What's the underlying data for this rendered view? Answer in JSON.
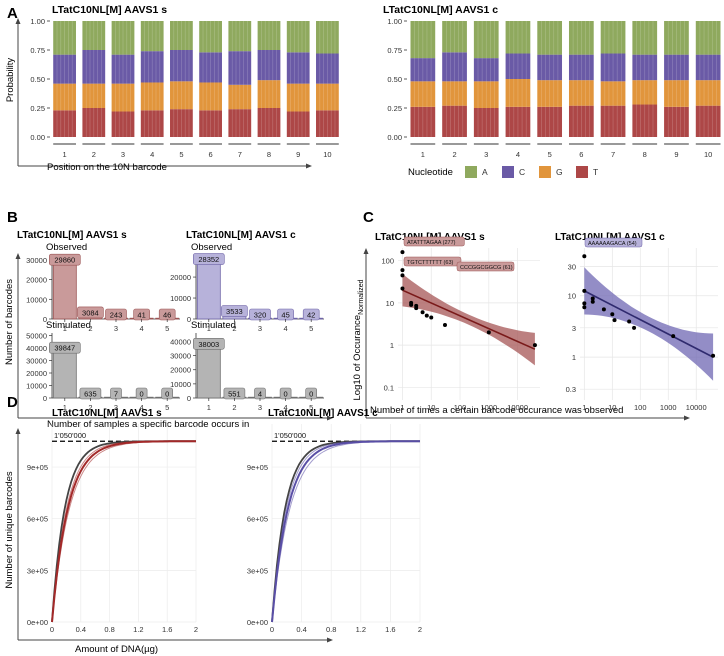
{
  "colors": {
    "A": "#8fa95e",
    "C": "#6a5aa6",
    "G": "#e1953c",
    "T": "#ad4747",
    "obs_s": "#c99a9a",
    "obs_s_stroke": "#9c5555",
    "obs_c": "#b7b2da",
    "obs_c_stroke": "#6f64a8",
    "stim": "#b4b4b4",
    "stim_stroke": "#6f6f6f",
    "line_s": "#7a1a1a",
    "band_s": "#a65555",
    "line_c": "#2f2a6e",
    "band_c": "#6f67b3",
    "grey_curve": "#444444"
  },
  "panels": {
    "A": {
      "letter": "A"
    },
    "B": {
      "letter": "B",
      "ylabel": "Number of barcodes",
      "xlabel": "Number of samples a specific barcode occurs in"
    },
    "C": {
      "letter": "C",
      "ylabel_main": "Log10 of Occurance",
      "ylabel_sub": "Normalized",
      "xlabel": "Number of times a certain barcode occurance was observed"
    },
    "D": {
      "letter": "D",
      "ylabel": "Number of unique barcodes",
      "xlabel": "Amount of DNA(µg)"
    }
  },
  "chart_data": [
    {
      "id": "A_s",
      "type": "bar",
      "stacked": true,
      "title": "LTatC10NL[M] AAVS1 s",
      "xlabel": "Position on the 10N barcode",
      "ylabel": "Probability",
      "ylim": [
        0,
        1
      ],
      "yticks": [
        "0.00",
        "0.25",
        "0.50",
        "0.75",
        "1.00"
      ],
      "categories": [
        "1",
        "2",
        "3",
        "4",
        "5",
        "6",
        "7",
        "8",
        "9",
        "10"
      ],
      "series": [
        {
          "name": "T",
          "values": [
            0.23,
            0.25,
            0.22,
            0.23,
            0.24,
            0.23,
            0.24,
            0.25,
            0.22,
            0.23
          ]
        },
        {
          "name": "G",
          "values": [
            0.23,
            0.21,
            0.24,
            0.24,
            0.24,
            0.24,
            0.21,
            0.24,
            0.24,
            0.23
          ]
        },
        {
          "name": "C",
          "values": [
            0.25,
            0.29,
            0.25,
            0.27,
            0.27,
            0.26,
            0.29,
            0.26,
            0.27,
            0.26
          ]
        },
        {
          "name": "A",
          "values": [
            0.29,
            0.25,
            0.29,
            0.26,
            0.25,
            0.27,
            0.26,
            0.25,
            0.27,
            0.28
          ]
        }
      ]
    },
    {
      "id": "A_c",
      "type": "bar",
      "stacked": true,
      "title": "LTatC10NL[M] AAVS1 c",
      "ylim": [
        0,
        1
      ],
      "yticks": [
        "0.00",
        "0.25",
        "0.50",
        "0.75",
        "1.00"
      ],
      "categories": [
        "1",
        "2",
        "3",
        "4",
        "5",
        "6",
        "7",
        "8",
        "9",
        "10"
      ],
      "series": [
        {
          "name": "T",
          "values": [
            0.26,
            0.27,
            0.25,
            0.26,
            0.26,
            0.27,
            0.27,
            0.28,
            0.26,
            0.27
          ]
        },
        {
          "name": "G",
          "values": [
            0.22,
            0.21,
            0.23,
            0.24,
            0.23,
            0.22,
            0.21,
            0.21,
            0.23,
            0.22
          ]
        },
        {
          "name": "C",
          "values": [
            0.2,
            0.25,
            0.2,
            0.22,
            0.22,
            0.22,
            0.24,
            0.22,
            0.22,
            0.22
          ]
        },
        {
          "name": "A",
          "values": [
            0.32,
            0.27,
            0.32,
            0.28,
            0.29,
            0.29,
            0.28,
            0.29,
            0.29,
            0.29
          ]
        }
      ],
      "legend": {
        "title": "Nucleotide",
        "entries": [
          "A",
          "C",
          "G",
          "T"
        ],
        "position": "bottom"
      }
    },
    {
      "id": "B_obs_s",
      "type": "bar",
      "title": "LTatC10NL[M] AAVS1 s",
      "subtitle": "Observed",
      "categories": [
        "1",
        "2",
        "3",
        "4",
        "5"
      ],
      "values": [
        29860,
        3084,
        243,
        41,
        46
      ],
      "ylim": [
        0,
        33000
      ],
      "yticks": [
        0,
        10000,
        20000,
        30000
      ]
    },
    {
      "id": "B_stim_s",
      "type": "bar",
      "subtitle": "Stimulated",
      "categories": [
        "1",
        "2",
        "3",
        "4",
        "5"
      ],
      "values": [
        39847,
        635,
        7,
        0,
        0
      ],
      "ylim": [
        0,
        52000
      ],
      "yticks": [
        0,
        10000,
        20000,
        30000,
        40000,
        50000
      ]
    },
    {
      "id": "B_obs_c",
      "type": "bar",
      "title": "LTatC10NL[M] AAVS1 c",
      "subtitle": "Observed",
      "categories": [
        "1",
        "2",
        "3",
        "4",
        "5"
      ],
      "values": [
        28352,
        3533,
        320,
        45,
        42
      ],
      "ylim": [
        0,
        31000
      ],
      "yticks": [
        0,
        10000,
        20000
      ]
    },
    {
      "id": "B_stim_c",
      "type": "bar",
      "subtitle": "Stimulated",
      "categories": [
        "1",
        "2",
        "3",
        "4",
        "5"
      ],
      "values": [
        38003,
        551,
        4,
        0,
        0
      ],
      "ylim": [
        0,
        46000
      ],
      "yticks": [
        0,
        10000,
        20000,
        30000,
        40000
      ]
    },
    {
      "id": "C_s",
      "type": "scatter",
      "title": "LTatC10NL[M] AAVS1 s",
      "xscale": "log",
      "yscale": "log",
      "xlim": [
        0.7,
        60000
      ],
      "ylim": [
        0.05,
        200
      ],
      "xticks": [
        "1",
        "10",
        "100",
        "1000",
        "10000"
      ],
      "yticks": [
        "0.1",
        "1",
        "10",
        "100"
      ],
      "points": [
        [
          1,
          160
        ],
        [
          1,
          60
        ],
        [
          1,
          45
        ],
        [
          1,
          22
        ],
        [
          2,
          10
        ],
        [
          2,
          9
        ],
        [
          3,
          8.5
        ],
        [
          3,
          7.5
        ],
        [
          5,
          6
        ],
        [
          7,
          5
        ],
        [
          10,
          4.5
        ],
        [
          30,
          3
        ],
        [
          1000,
          2
        ],
        [
          40000,
          1
        ]
      ],
      "fit": {
        "from": [
          1,
          20
        ],
        "to": [
          40000,
          0.8
        ]
      },
      "labels": [
        "ATATTTAGAA (277)",
        "TGTCTTTTTT (63)",
        "CCCGGCGGCG (61)"
      ]
    },
    {
      "id": "C_c",
      "type": "scatter",
      "title": "LTatC10NL[M] AAVS1 c",
      "xscale": "log",
      "yscale": "log",
      "xlim": [
        0.7,
        60000
      ],
      "ylim": [
        0.2,
        60
      ],
      "xticks": [
        "1",
        "10",
        "100",
        "1000",
        "10000"
      ],
      "yticks": [
        "0.3",
        "1",
        "3",
        "10",
        "30"
      ],
      "points": [
        [
          1,
          44
        ],
        [
          1,
          12
        ],
        [
          1,
          7.5
        ],
        [
          1,
          6.5
        ],
        [
          2,
          9
        ],
        [
          2,
          8
        ],
        [
          5,
          6
        ],
        [
          10,
          5
        ],
        [
          12,
          4
        ],
        [
          40,
          3.8
        ],
        [
          60,
          3
        ],
        [
          1500,
          2.2
        ],
        [
          40000,
          1.05
        ]
      ],
      "fit": {
        "from": [
          1,
          12
        ],
        "to": [
          40000,
          1
        ]
      },
      "labels": [
        "AAAAAAGACA (54)"
      ]
    },
    {
      "id": "D_s",
      "type": "line",
      "title": "LTatC10NL[M] AAVS1 s",
      "xlim": [
        0,
        2
      ],
      "ylim": [
        0,
        1150000
      ],
      "xticks": [
        "0",
        "0.4",
        "0.8",
        "1.2",
        "1.6",
        "2"
      ],
      "yticks": [
        "0e+00",
        "3e+05",
        "6e+05",
        "9e+05"
      ],
      "asymptote": 1050000,
      "asymptote_label": "1'050'000",
      "series": [
        {
          "name": "grey",
          "k": 5.6
        },
        {
          "name": "red",
          "k": 4.5
        },
        {
          "name": "red_upper",
          "k": 4.9
        },
        {
          "name": "red_lower",
          "k": 4.1
        }
      ]
    },
    {
      "id": "D_c",
      "type": "line",
      "title": "LTatC10NL[M] AAVS1 c",
      "xlim": [
        0,
        2
      ],
      "ylim": [
        0,
        1150000
      ],
      "xticks": [
        "0",
        "0.4",
        "0.8",
        "1.2",
        "1.6",
        "2"
      ],
      "yticks": [
        "0e+00",
        "3e+05",
        "6e+05",
        "9e+05"
      ],
      "asymptote": 1050000,
      "asymptote_label": "1'050'000",
      "series": [
        {
          "name": "grey",
          "k": 5.6
        },
        {
          "name": "blue",
          "k": 4.6
        },
        {
          "name": "blue_upper",
          "k": 5.1
        },
        {
          "name": "blue_lower",
          "k": 4.1
        }
      ]
    }
  ]
}
